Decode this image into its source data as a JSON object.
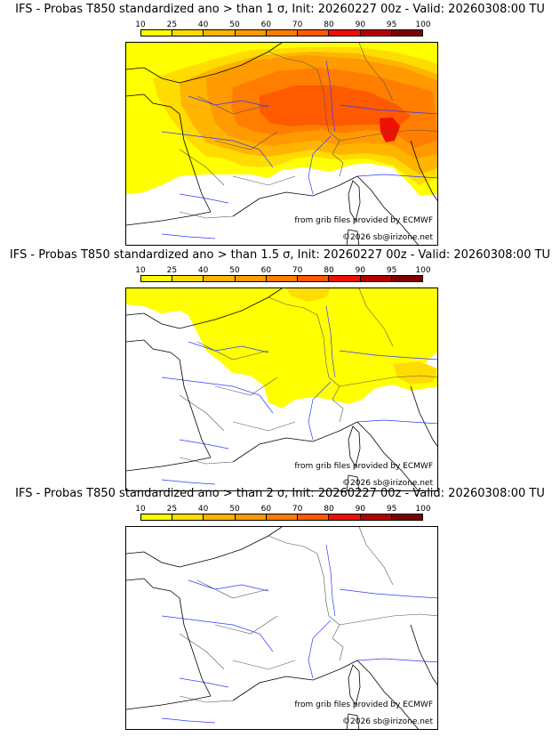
{
  "colorscale": {
    "ticks": [
      "10",
      "25",
      "40",
      "50",
      "60",
      "70",
      "80",
      "90",
      "95",
      "100"
    ],
    "colors": [
      "#ffff00",
      "#ffdc00",
      "#ffb400",
      "#ff9a00",
      "#ff7e00",
      "#ff5a00",
      "#ee1000",
      "#b40000",
      "#800000",
      "#4a0000"
    ]
  },
  "panels": [
    {
      "title": "IFS - Probas T850  standardized ano > than 1 σ, Init: 20260227 00z - Valid: 20260308:00 TU",
      "threshold": "1"
    },
    {
      "title": "IFS - Probas T850  standardized ano > than 1.5 σ, Init: 20260227 00z - Valid: 20260308:00 TU",
      "threshold": "1.5"
    },
    {
      "title": "IFS - Probas T850  standardized ano > than 2 σ, Init: 20260227 00z - Valid: 20260308:00 TU",
      "threshold": "2"
    }
  ],
  "credits": {
    "source": "from grib files provided by ECMWF",
    "copyright": "©2026 sb@irizone.net"
  }
}
